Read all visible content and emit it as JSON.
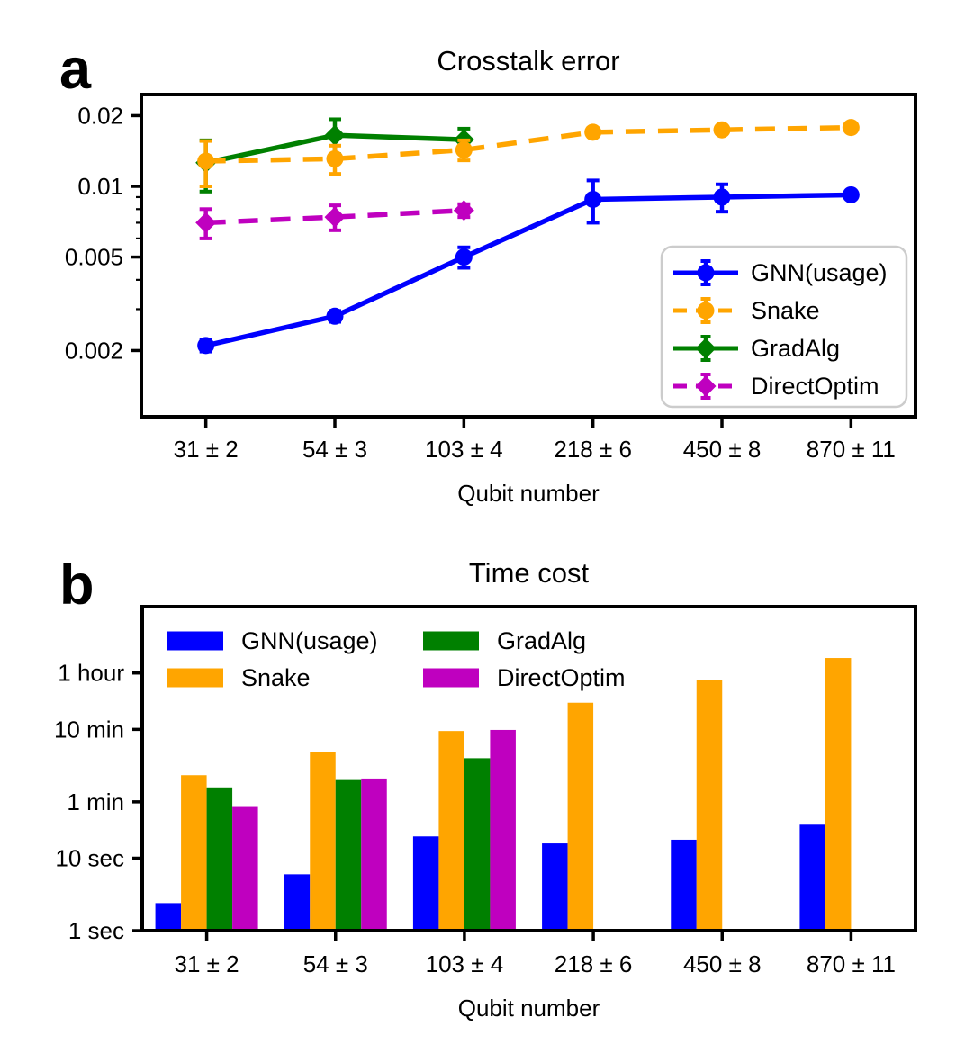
{
  "figure": {
    "background": "#ffffff",
    "axis_color": "#000000",
    "text_color": "#000000"
  },
  "chart_data": [
    {
      "id": "crosstalk-error",
      "panel_label": "a",
      "type": "line",
      "title": "Crosstalk error",
      "xlabel": "Qubit number",
      "categories": [
        "31 ± 2",
        "54 ± 3",
        "103 ± 4",
        "218 ± 6",
        "450 ± 8",
        "870 ± 11"
      ],
      "yscale": "log",
      "ylim": [
        0.00105,
        0.0248
      ],
      "yticks": [
        {
          "value": 0.02,
          "label": "0.02"
        },
        {
          "value": 0.01,
          "label": "0.01"
        },
        {
          "value": 0.005,
          "label": "0.005"
        },
        {
          "value": 0.002,
          "label": "0.002"
        }
      ],
      "yticks_minor": [
        0.009,
        0.008,
        0.007,
        0.006,
        0.004,
        0.003
      ],
      "legend": {
        "position": "lower right",
        "frame": true
      },
      "series": [
        {
          "name": "GNN(usage)",
          "color": "#0000ff",
          "line_style": "solid",
          "marker": "circle",
          "values": [
            0.0021,
            0.0028,
            0.005,
            0.0088,
            0.009,
            0.0092
          ],
          "errors": [
            0.00012,
            0.00015,
            0.0005,
            0.0018,
            0.0012,
            0.0002
          ]
        },
        {
          "name": "Snake",
          "color": "#ffa500",
          "line_style": "dashed",
          "marker": "circle",
          "values": [
            0.0128,
            0.0131,
            0.0143,
            0.017,
            0.0174,
            0.0178
          ],
          "errors": [
            0.0028,
            0.0018,
            0.0014,
            0.0005,
            0.0004,
            0.0003
          ]
        },
        {
          "name": "GradAlg",
          "color": "#008000",
          "line_style": "solid",
          "marker": "diamond",
          "values": [
            0.0126,
            0.0165,
            0.0158,
            null,
            null,
            null
          ],
          "errors": [
            0.0031,
            0.0028,
            0.0018,
            null,
            null,
            null
          ]
        },
        {
          "name": "DirectOptim",
          "color": "#bf00bf",
          "line_style": "dashed",
          "marker": "diamond",
          "values": [
            0.007,
            0.0074,
            0.0079,
            null,
            null,
            null
          ],
          "errors": [
            0.001,
            0.0009,
            0.0005,
            null,
            null,
            null
          ]
        }
      ]
    },
    {
      "id": "time-cost",
      "panel_label": "b",
      "type": "bar",
      "title": "Time cost",
      "xlabel": "Qubit number",
      "categories": [
        "31 ± 2",
        "54 ± 3",
        "103 ± 4",
        "218 ± 6",
        "450 ± 8",
        "870 ± 11"
      ],
      "yscale": "log",
      "ylim_seconds": [
        1,
        29500
      ],
      "yticks": [
        {
          "seconds": 3600,
          "label": "1 hour"
        },
        {
          "seconds": 600,
          "label": "10 min"
        },
        {
          "seconds": 60,
          "label": "1 min"
        },
        {
          "seconds": 10,
          "label": "10 sec"
        },
        {
          "seconds": 1,
          "label": "1 sec"
        }
      ],
      "legend": {
        "position": "upper left",
        "frame": false,
        "columns": 2
      },
      "series": [
        {
          "name": "GNN(usage)",
          "color": "#0000ff",
          "values_seconds": [
            2.4,
            6,
            20,
            16,
            18,
            29
          ]
        },
        {
          "name": "Snake",
          "color": "#ffa500",
          "values_seconds": [
            140,
            290,
            570,
            1400,
            2900,
            5800
          ]
        },
        {
          "name": "GradAlg",
          "color": "#008000",
          "values_seconds": [
            95,
            120,
            240,
            null,
            null,
            null
          ]
        },
        {
          "name": "DirectOptim",
          "color": "#bf00bf",
          "values_seconds": [
            51,
            126,
            590,
            null,
            null,
            null
          ]
        }
      ]
    }
  ]
}
